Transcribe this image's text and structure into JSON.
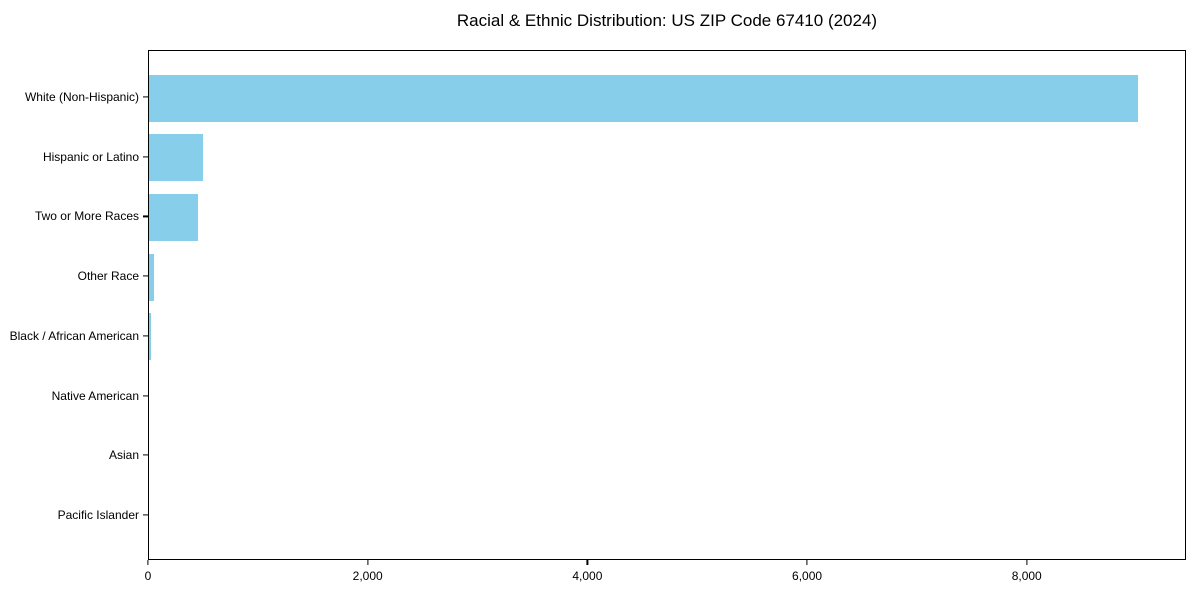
{
  "chart_data": {
    "type": "bar",
    "orientation": "horizontal",
    "title": "Racial & Ethnic Distribution: US ZIP Code 67410 (2024)",
    "categories": [
      "White (Non-Hispanic)",
      "Hispanic or Latino",
      "Two or More Races",
      "Other Race",
      "Black / African American",
      "Native American",
      "Asian",
      "Pacific Islander"
    ],
    "values": [
      9000,
      490,
      445,
      50,
      15,
      0,
      0,
      0
    ],
    "xlabel": "",
    "ylabel": "",
    "xlim": [
      0,
      9450
    ],
    "x_ticks": [
      0,
      2000,
      4000,
      6000,
      8000
    ],
    "x_tick_labels": [
      "0",
      "2,000",
      "4,000",
      "6,000",
      "8,000"
    ],
    "bar_color": "#87CEEB",
    "axis_color": "#000000",
    "text_color": "#000000",
    "grid": false,
    "legend": false
  }
}
